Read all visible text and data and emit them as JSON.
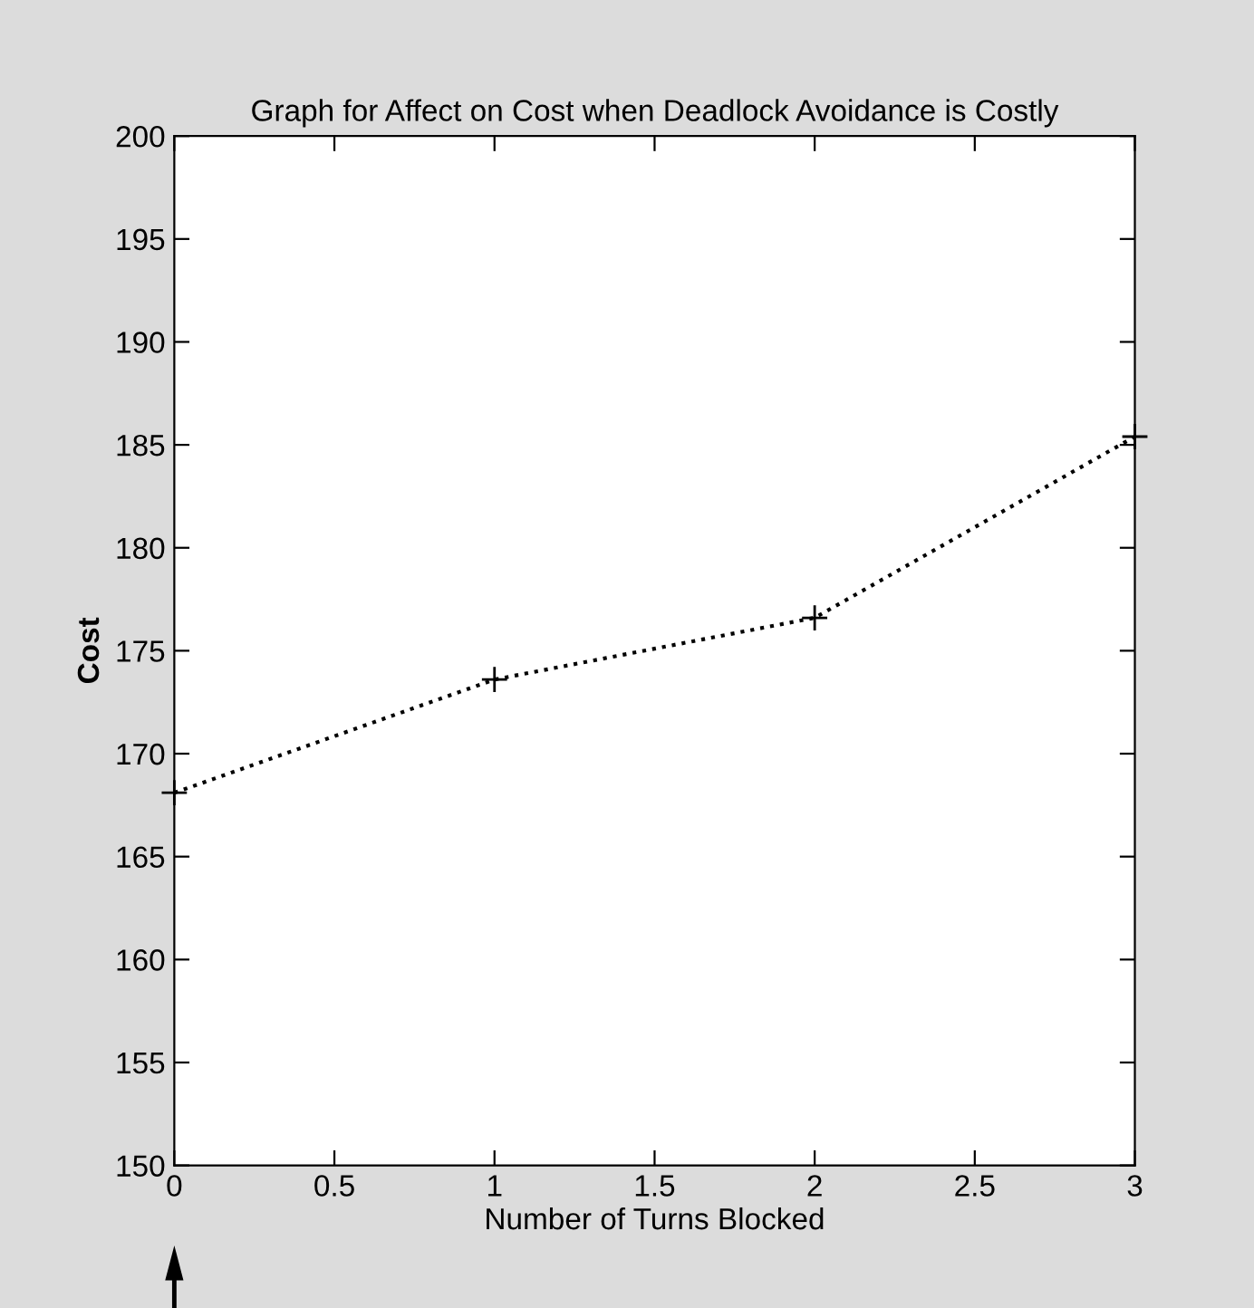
{
  "chart_data": {
    "type": "line",
    "title": "Graph for Affect on Cost when Deadlock Avoidance is Costly",
    "xlabel": "Number of Turns Blocked",
    "ylabel": "Cost",
    "x": [
      0,
      1,
      2,
      3
    ],
    "series": [
      {
        "color": "#000000",
        "values": [
          168.1,
          173.6,
          176.6,
          185.4
        ]
      }
    ],
    "xlim": [
      0,
      3
    ],
    "xticks": [
      0,
      0.5,
      1,
      1.5,
      2,
      2.5,
      3
    ],
    "ylim": [
      150,
      200
    ],
    "yticks": [
      150,
      155,
      160,
      165,
      170,
      175,
      180,
      185,
      190,
      195,
      200
    ],
    "marker": "cross",
    "line_style": "dotted"
  }
}
